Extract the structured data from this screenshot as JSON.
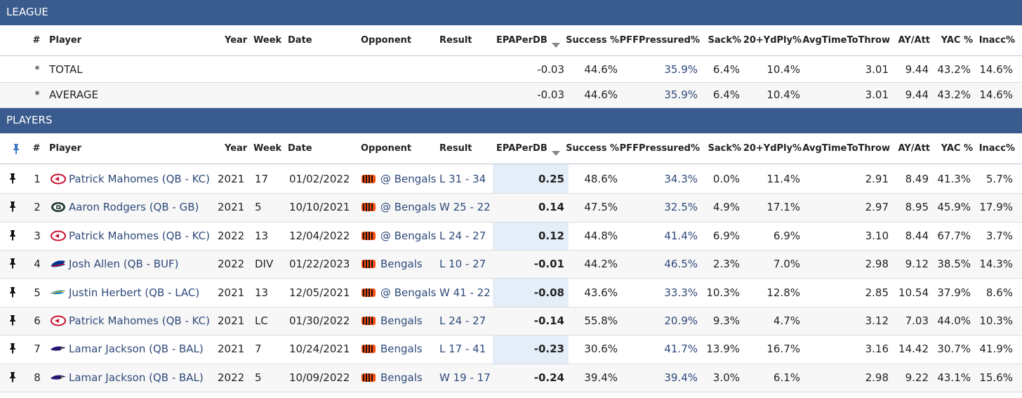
{
  "league": {
    "title": "LEAGUE",
    "columns": [
      "#",
      "Player",
      "Year",
      "Week",
      "Date",
      "Opponent",
      "Result",
      "EPAPerDB",
      "Success %",
      "PFFPressured%",
      "Sack%",
      "20+YdPly%",
      "AvgTimeToThrow",
      "AY/Att",
      "YAC %",
      "Inacc%"
    ],
    "rows": [
      [
        "*",
        "TOTAL",
        null,
        null,
        null,
        null,
        null,
        "-0.03",
        "44.6%",
        "35.9%",
        "6.4%",
        "10.4%",
        "3.01",
        "9.44",
        "43.2%",
        "14.6%"
      ],
      [
        "*",
        "AVERAGE",
        null,
        null,
        null,
        null,
        null,
        "-0.03",
        "44.6%",
        "35.9%",
        "6.4%",
        "10.4%",
        "3.01",
        "9.44",
        "43.2%",
        "14.6%"
      ]
    ]
  },
  "players": {
    "title": "PLAYERS",
    "columns": [
      "#",
      "Player",
      "Year",
      "Week",
      "Date",
      "Opponent",
      "Result",
      "EPAPerDB",
      "Success %",
      "PFFPressured%",
      "Sack%",
      "20+YdPly%",
      "AvgTimeToThrow",
      "AY/Att",
      "YAC %",
      "Inacc%"
    ],
    "rows": [
      [
        "1",
        "Patrick Mahomes (QB - KC)",
        "2021",
        "17",
        "01/02/2022",
        "@ Bengals",
        "L 31 - 34",
        "0.25",
        "48.6%",
        "34.3%",
        "0.0%",
        "11.4%",
        "2.91",
        "8.49",
        "41.3%",
        "5.7%"
      ],
      [
        "2",
        "Aaron Rodgers (QB - GB)",
        "2021",
        "5",
        "10/10/2021",
        "@ Bengals",
        "W 25 - 22",
        "0.14",
        "47.5%",
        "32.5%",
        "4.9%",
        "17.1%",
        "2.97",
        "8.95",
        "45.9%",
        "17.9%"
      ],
      [
        "3",
        "Patrick Mahomes (QB - KC)",
        "2022",
        "13",
        "12/04/2022",
        "@ Bengals",
        "L 24 - 27",
        "0.12",
        "44.8%",
        "41.4%",
        "6.9%",
        "6.9%",
        "3.10",
        "8.44",
        "67.7%",
        "3.7%"
      ],
      [
        "4",
        "Josh Allen (QB - BUF)",
        "2022",
        "DIV",
        "01/22/2023",
        "Bengals",
        "L 10 - 27",
        "-0.01",
        "44.2%",
        "46.5%",
        "2.3%",
        "7.0%",
        "2.98",
        "9.12",
        "38.5%",
        "14.3%"
      ],
      [
        "5",
        "Justin Herbert (QB - LAC)",
        "2021",
        "13",
        "12/05/2021",
        "@ Bengals",
        "W 41 - 22",
        "-0.08",
        "43.6%",
        "33.3%",
        "10.3%",
        "12.8%",
        "2.85",
        "10.54",
        "37.9%",
        "8.6%"
      ],
      [
        "6",
        "Patrick Mahomes (QB - KC)",
        "2021",
        "LC",
        "01/30/2022",
        "Bengals",
        "L 24 - 27",
        "-0.14",
        "55.8%",
        "20.9%",
        "9.3%",
        "4.7%",
        "3.12",
        "7.03",
        "44.0%",
        "10.3%"
      ],
      [
        "7",
        "Lamar Jackson (QB - BAL)",
        "2021",
        "7",
        "10/24/2021",
        "Bengals",
        "L 17 - 41",
        "-0.23",
        "30.6%",
        "41.7%",
        "13.9%",
        "16.7%",
        "3.16",
        "14.42",
        "30.7%",
        "41.9%"
      ],
      [
        "8",
        "Lamar Jackson (QB - BAL)",
        "2022",
        "5",
        "10/09/2022",
        "Bengals",
        "W 19 - 17",
        "-0.24",
        "39.4%",
        "39.4%",
        "3.0%",
        "6.1%",
        "2.98",
        "9.22",
        "43.1%",
        "15.6%"
      ]
    ]
  }
}
